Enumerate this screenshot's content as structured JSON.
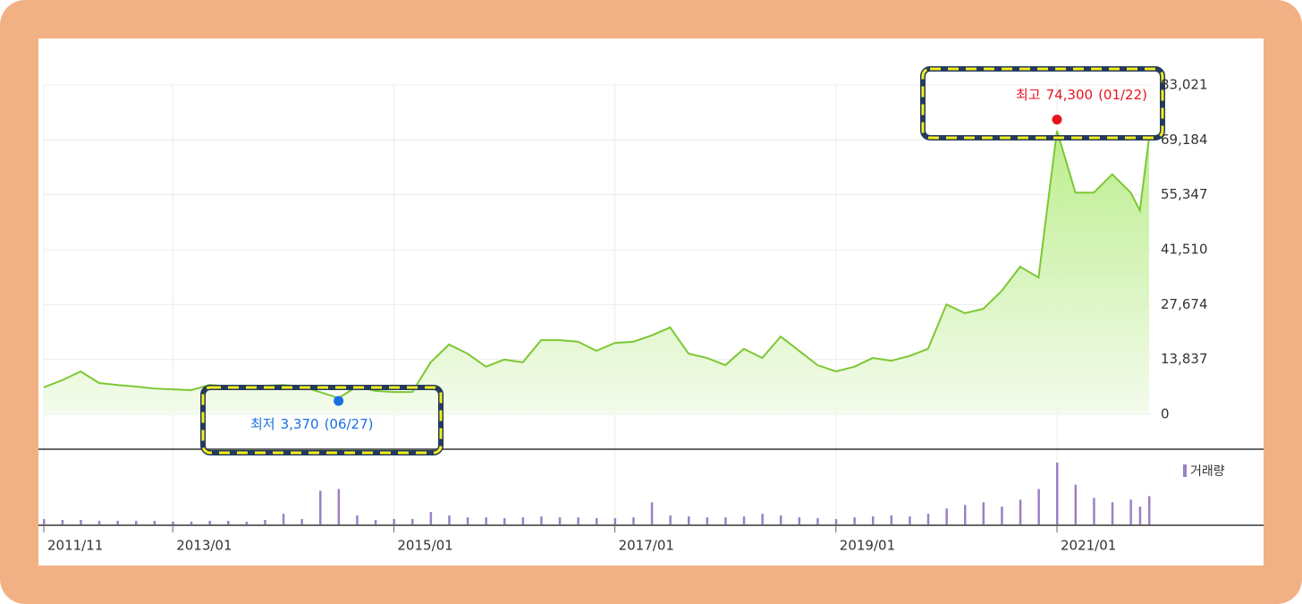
{
  "chart_data": {
    "type": "line",
    "x": [
      "2011/11",
      "2012/01",
      "2012/03",
      "2012/05",
      "2012/07",
      "2012/09",
      "2012/11",
      "2013/01",
      "2013/03",
      "2013/05",
      "2013/07",
      "2013/09",
      "2013/11",
      "2014/01",
      "2014/03",
      "2014/05",
      "2014/07",
      "2014/09",
      "2014/11",
      "2015/01",
      "2015/03",
      "2015/05",
      "2015/07",
      "2015/09",
      "2015/11",
      "2016/01",
      "2016/03",
      "2016/05",
      "2016/07",
      "2016/09",
      "2016/11",
      "2017/01",
      "2017/03",
      "2017/05",
      "2017/07",
      "2017/09",
      "2017/11",
      "2018/01",
      "2018/03",
      "2018/05",
      "2018/07",
      "2018/09",
      "2018/11",
      "2019/01",
      "2019/03",
      "2019/05",
      "2019/07",
      "2019/09",
      "2019/11",
      "2020/01",
      "2020/03",
      "2020/05",
      "2020/07",
      "2020/09",
      "2020/11",
      "2021/01",
      "2021/03",
      "2021/05",
      "2021/07",
      "2021/09",
      "2021/10",
      "2021/11"
    ],
    "series": [
      {
        "color": "#7cc832",
        "values": [
          6800,
          8600,
          10800,
          7900,
          7400,
          7000,
          6500,
          6300,
          6100,
          7400,
          7000,
          6500,
          7200,
          7400,
          7000,
          5600,
          4100,
          7000,
          5900,
          5600,
          5600,
          13100,
          17600,
          15300,
          12000,
          13800,
          13100,
          18700,
          18700,
          18300,
          16000,
          18000,
          18300,
          19900,
          21900,
          15300,
          14200,
          12400,
          16500,
          14200,
          19600,
          16000,
          12400,
          10800,
          12000,
          14200,
          13500,
          14700,
          16500,
          27700,
          25500,
          26600,
          31100,
          37200,
          34500,
          71500,
          55900,
          55900,
          60500,
          55900,
          51400,
          69800
        ]
      }
    ],
    "volume": {
      "name": "거래량",
      "color": "#9a80c4",
      "vlim": [
        0,
        75
      ],
      "values": [
        6,
        5,
        5,
        4,
        4,
        4,
        4,
        3,
        3,
        4,
        4,
        3,
        5,
        12,
        6,
        38,
        40,
        10,
        5,
        6,
        6,
        14,
        10,
        8,
        8,
        7,
        8,
        9,
        8,
        8,
        7,
        7,
        8,
        25,
        10,
        9,
        8,
        8,
        9,
        12,
        10,
        8,
        7,
        6,
        8,
        9,
        10,
        9,
        12,
        18,
        22,
        25,
        20,
        28,
        40,
        70,
        45,
        30,
        25,
        28,
        20,
        32
      ]
    },
    "ylim": [
      0,
      83021
    ],
    "yticks": [
      0,
      {
        "value": 13837,
        "label": "13,837"
      },
      {
        "value": 27674,
        "label": "27,674"
      },
      {
        "value": 41510,
        "label": "41,510"
      },
      {
        "value": 55347,
        "label": "55,347"
      },
      {
        "value": 69184,
        "label": "69,184"
      },
      {
        "value": 83021,
        "label": "83,021"
      }
    ],
    "xticks": [
      "2011/11",
      "2013/01",
      "2015/01",
      "2017/01",
      "2019/01",
      "2021/01"
    ],
    "grid": true,
    "annotations": [
      {
        "label": "최저",
        "value": 3370,
        "value_label": "3,370",
        "date": "(06/27)",
        "color": "#1a6fe0"
      },
      {
        "label": "최고",
        "value": 74300,
        "value_label": "74,300",
        "date": "(01/22)",
        "color": "#e8141c"
      }
    ]
  }
}
